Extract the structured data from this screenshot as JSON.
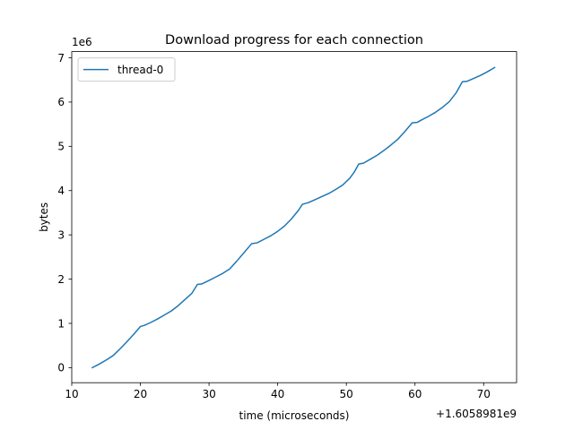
{
  "chart_data": {
    "type": "line",
    "title": "Download progress for each connection",
    "xlabel": "time (microseconds)",
    "ylabel": "bytes",
    "x_offset_label": "+1.6058981e9",
    "y_scale_label": "1e6",
    "xlim": [
      10,
      74.8
    ],
    "ylim": [
      -0.34,
      7.14
    ],
    "xticks": [
      10,
      20,
      30,
      40,
      50,
      60,
      70
    ],
    "xtick_labels": [
      "10",
      "20",
      "30",
      "40",
      "50",
      "60",
      "70"
    ],
    "yticks": [
      0,
      1,
      2,
      3,
      4,
      5,
      6,
      7
    ],
    "ytick_labels": [
      "0",
      "1",
      "2",
      "3",
      "4",
      "5",
      "6",
      "7"
    ],
    "grid": false,
    "legend_position": "top-left",
    "series": [
      {
        "name": "thread-0",
        "color": "#1f77b4",
        "x": [
          13.0,
          14.0,
          15.0,
          16.0,
          17.0,
          18.0,
          19.0,
          20.0,
          20.5,
          21.5,
          22.5,
          23.5,
          24.5,
          25.5,
          26.5,
          27.5,
          28.3,
          28.9,
          30.0,
          31.0,
          32.0,
          33.0,
          34.0,
          35.0,
          36.2,
          37.0,
          38.0,
          39.0,
          40.0,
          41.0,
          42.0,
          43.0,
          43.6,
          44.5,
          45.5,
          46.5,
          47.5,
          48.5,
          49.5,
          50.5,
          51.2,
          51.8,
          52.5,
          53.5,
          54.5,
          55.5,
          56.5,
          57.5,
          58.5,
          59.6,
          60.3,
          61.0,
          62.0,
          63.0,
          64.0,
          65.0,
          66.0,
          66.9,
          67.6,
          68.5,
          69.5,
          70.5,
          71.6
        ],
        "y": [
          0.0,
          0.08,
          0.17,
          0.27,
          0.42,
          0.58,
          0.75,
          0.93,
          0.95,
          1.02,
          1.1,
          1.19,
          1.28,
          1.4,
          1.54,
          1.68,
          1.88,
          1.89,
          1.97,
          2.05,
          2.13,
          2.23,
          2.4,
          2.58,
          2.8,
          2.82,
          2.9,
          2.98,
          3.08,
          3.2,
          3.36,
          3.55,
          3.69,
          3.73,
          3.8,
          3.87,
          3.94,
          4.03,
          4.13,
          4.28,
          4.43,
          4.6,
          4.62,
          4.71,
          4.8,
          4.91,
          5.03,
          5.16,
          5.33,
          5.53,
          5.54,
          5.6,
          5.68,
          5.77,
          5.88,
          6.01,
          6.21,
          6.46,
          6.47,
          6.53,
          6.6,
          6.68,
          6.78
        ]
      }
    ]
  }
}
